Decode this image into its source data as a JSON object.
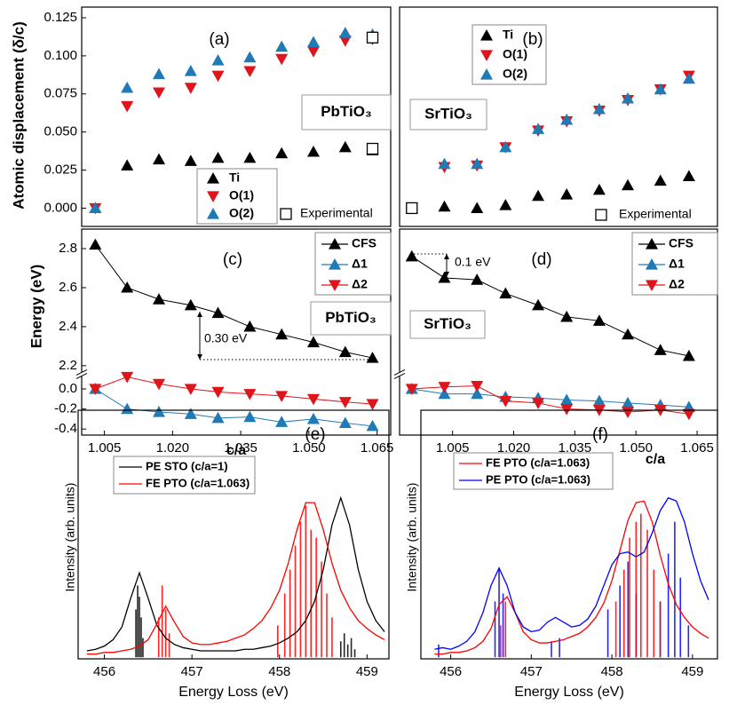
{
  "chart_data": [
    {
      "type": "scatter",
      "label": "(a)",
      "annotation": "PbTiO₃",
      "ylabel": "Atomic displacement (δ/c)",
      "x": [
        1.003,
        1.01,
        1.017,
        1.024,
        1.03,
        1.037,
        1.044,
        1.051,
        1.058,
        1.064
      ],
      "xlim": [
        1.0,
        1.068
      ],
      "ylim": [
        -0.012,
        0.132
      ],
      "yticks": [
        {
          "value": 0,
          "label": "0.000"
        },
        {
          "value": 0.025,
          "label": "0.025"
        },
        {
          "value": 0.05,
          "label": "0.050"
        },
        {
          "value": 0.075,
          "label": "0.075"
        },
        {
          "value": 0.1,
          "label": "0.100"
        },
        {
          "value": 0.125,
          "label": "0.125"
        }
      ],
      "series": [
        {
          "name": "Ti",
          "color": "#000000",
          "marker": "triangle-up",
          "values": [
            0,
            0.028,
            0.032,
            0.031,
            0.033,
            0.033,
            0.036,
            0.037,
            0.04,
            0.038
          ]
        },
        {
          "name": "O(1)",
          "color": "#e0141b",
          "marker": "triangle-down",
          "values": [
            0,
            0.067,
            0.076,
            0.079,
            0.087,
            0.09,
            0.098,
            0.103,
            0.11,
            0.111
          ]
        },
        {
          "name": "O(2)",
          "color": "#1f7ab5",
          "marker": "triangle-up",
          "values": [
            0,
            0.079,
            0.088,
            0.09,
            0.097,
            0.099,
            0.106,
            0.109,
            0.115,
            0.114
          ]
        },
        {
          "name": "Experimental",
          "color": "#000000",
          "marker": "square-open",
          "x": [
            1.064,
            1.064
          ],
          "values": [
            0.112,
            0.039
          ]
        }
      ]
    },
    {
      "type": "scatter",
      "label": "(b)",
      "annotation": "SrTiO₃",
      "x": [
        0.995,
        1.003,
        1.011,
        1.018,
        1.026,
        1.033,
        1.041,
        1.048,
        1.056,
        1.063
      ],
      "xlim": [
        0.992,
        1.07
      ],
      "ylim": [
        -0.012,
        0.132
      ],
      "series": [
        {
          "name": "Ti",
          "color": "#000000",
          "marker": "triangle-up",
          "values": [
            0,
            0.001,
            0.0,
            0.002,
            0.008,
            0.009,
            0.012,
            0.015,
            0.018,
            0.021
          ]
        },
        {
          "name": "O(1)",
          "color": "#e0141b",
          "marker": "triangle-down",
          "values": [
            0,
            0.027,
            0.028,
            0.04,
            0.051,
            0.057,
            0.064,
            0.071,
            0.078,
            0.087
          ]
        },
        {
          "name": "O(2)",
          "color": "#1f7ab5",
          "marker": "triangle-up",
          "values": [
            0,
            0.029,
            0.029,
            0.04,
            0.052,
            0.058,
            0.065,
            0.072,
            0.078,
            0.085
          ]
        },
        {
          "name": "Experimental",
          "color": "#000000",
          "marker": "square-open",
          "x": [
            0.995
          ],
          "values": [
            0
          ]
        }
      ]
    },
    {
      "type": "line",
      "label": "(c)",
      "annotation": "PbTiO₃",
      "ylabel": "Energy (eV)",
      "xlabel": "c/a",
      "note": "0.30 eV",
      "x": [
        1.003,
        1.01,
        1.017,
        1.024,
        1.03,
        1.037,
        1.044,
        1.051,
        1.058,
        1.064
      ],
      "xlim": [
        1.0,
        1.068
      ],
      "ylim": [
        -0.46,
        2.9
      ],
      "ybreak": [
        0.12,
        2.17
      ],
      "yticks": [
        -0.4,
        -0.2,
        {
          "value": 0,
          "label": "0.0"
        },
        2.2,
        2.4,
        2.6,
        2.8
      ],
      "xticks": [
        1.005,
        {
          "value": 1.02,
          "label": "1.020"
        },
        1.035,
        {
          "value": 1.05,
          "label": "1.050"
        },
        1.065
      ],
      "series": [
        {
          "name": "CFS",
          "color": "#000000",
          "marker": "triangle-up",
          "values": [
            2.82,
            2.6,
            2.54,
            2.51,
            2.47,
            2.4,
            2.36,
            2.32,
            2.27,
            2.24
          ]
        },
        {
          "name": "Δ1",
          "color": "#1f7ab5",
          "marker": "triangle-up",
          "values": [
            0,
            -0.2,
            -0.23,
            -0.25,
            -0.29,
            -0.28,
            -0.33,
            -0.3,
            -0.34,
            -0.37
          ]
        },
        {
          "name": "Δ2",
          "color": "#e0141b",
          "marker": "triangle-down",
          "values": [
            0,
            0.12,
            0.05,
            0.0,
            -0.03,
            -0.05,
            -0.07,
            -0.1,
            -0.13,
            -0.15
          ]
        }
      ]
    },
    {
      "type": "line",
      "label": "(d)",
      "annotation": "SrTiO₃",
      "xlabel": "c/a",
      "note": "0.1 eV",
      "x": [
        0.995,
        1.003,
        1.011,
        1.018,
        1.026,
        1.033,
        1.041,
        1.048,
        1.056,
        1.063
      ],
      "xlim": [
        0.992,
        1.07
      ],
      "ylim": [
        -0.46,
        2.9
      ],
      "ybreak": [
        0.12,
        2.17
      ],
      "xticks": [
        1.005,
        {
          "value": 1.02,
          "label": "1.020"
        },
        1.035,
        {
          "value": 1.05,
          "label": "1.050"
        },
        1.065
      ],
      "series": [
        {
          "name": "CFS",
          "color": "#000000",
          "marker": "triangle-up",
          "values": [
            2.76,
            2.65,
            2.64,
            2.57,
            2.51,
            2.45,
            2.43,
            2.36,
            2.28,
            2.25
          ]
        },
        {
          "name": "Δ1",
          "color": "#1f7ab5",
          "marker": "triangle-up",
          "values": [
            0,
            -0.05,
            -0.05,
            -0.08,
            -0.09,
            -0.11,
            -0.12,
            -0.14,
            -0.16,
            -0.18
          ]
        },
        {
          "name": "Δ2",
          "color": "#e0141b",
          "marker": "triangle-down",
          "values": [
            0,
            0.02,
            0.03,
            -0.12,
            -0.14,
            -0.2,
            -0.21,
            -0.23,
            -0.21,
            -0.25
          ]
        }
      ]
    },
    {
      "type": "line",
      "label": "(e)",
      "ylabel": "Intensity (arb. units)",
      "xlabel": "Energy Loss (eV)",
      "x": [
        455.8,
        455.9,
        456.0,
        456.1,
        456.2,
        456.3,
        456.4,
        456.5,
        456.6,
        456.7,
        456.8,
        456.9,
        457.0,
        457.1,
        457.2,
        457.3,
        457.4,
        457.5,
        457.6,
        457.7,
        457.8,
        457.9,
        458.0,
        458.1,
        458.2,
        458.3,
        458.4,
        458.5,
        458.6,
        458.7,
        458.8,
        458.9,
        459.0,
        459.1,
        459.2
      ],
      "xlim": [
        455.7,
        459.25
      ],
      "ylim": [
        -0.01,
        1.55
      ],
      "xticks": [
        456,
        457,
        458,
        459
      ],
      "series": [
        {
          "type": "stick",
          "color": "#000000",
          "x": [
            456.36,
            456.38,
            456.4,
            456.42,
            456.44,
            458.7,
            458.74,
            458.78,
            458.82,
            458.86
          ],
          "values": [
            0.3,
            0.45,
            0.38,
            0.25,
            0.12,
            0.1,
            0.15,
            0.08,
            0.12,
            0.05
          ]
        },
        {
          "type": "stick",
          "color": "#ff0000",
          "x": [
            456.62,
            456.66,
            456.7,
            456.74,
            457.98,
            458.06,
            458.12,
            458.18,
            458.24,
            458.3,
            458.36,
            458.42,
            458.48,
            458.54,
            458.6
          ],
          "values": [
            0.25,
            0.45,
            0.3,
            0.15,
            0.2,
            0.4,
            0.55,
            0.7,
            0.85,
            0.95,
            0.8,
            0.75,
            0.6,
            0.4,
            0.25
          ]
        },
        {
          "name": "PE STO (c/a=1)",
          "color": "#000000",
          "values": [
            0.04,
            0.05,
            0.07,
            0.11,
            0.19,
            0.37,
            0.53,
            0.37,
            0.2,
            0.12,
            0.08,
            0.06,
            0.05,
            0.04,
            0.04,
            0.04,
            0.04,
            0.04,
            0.05,
            0.05,
            0.06,
            0.07,
            0.09,
            0.12,
            0.16,
            0.23,
            0.35,
            0.55,
            0.83,
            1.0,
            0.83,
            0.55,
            0.35,
            0.23,
            0.16
          ]
        },
        {
          "name": "FE PTO (c/a=1.063)",
          "color": "#ff0000",
          "values": [
            0.02,
            0.02,
            0.03,
            0.03,
            0.04,
            0.05,
            0.07,
            0.11,
            0.21,
            0.32,
            0.22,
            0.13,
            0.09,
            0.08,
            0.08,
            0.09,
            0.1,
            0.12,
            0.14,
            0.18,
            0.23,
            0.31,
            0.42,
            0.59,
            0.8,
            0.97,
            0.97,
            0.8,
            0.59,
            0.42,
            0.31,
            0.23,
            0.18,
            0.14,
            0.11
          ]
        }
      ]
    },
    {
      "type": "line",
      "label": "(f)",
      "ylabel": "Intensity (arb. units)",
      "xlabel": "Energy Loss (eV)",
      "x": [
        455.8,
        455.9,
        456.0,
        456.1,
        456.2,
        456.3,
        456.4,
        456.5,
        456.6,
        456.7,
        456.8,
        456.9,
        457.0,
        457.1,
        457.2,
        457.3,
        457.4,
        457.5,
        457.6,
        457.7,
        457.8,
        457.9,
        458.0,
        458.1,
        458.2,
        458.3,
        458.4,
        458.5,
        458.6,
        458.7,
        458.8,
        458.9,
        459.0,
        459.1,
        459.2
      ],
      "xlim": [
        455.63,
        459.31
      ],
      "ylim": [
        -0.01,
        1.55
      ],
      "xticks": [
        456,
        457,
        458,
        459
      ],
      "series": [
        {
          "type": "stick",
          "color": "#0000ff",
          "x": [
            455.85,
            456.55,
            456.6,
            456.65,
            457.25,
            457.35,
            457.95,
            458.1,
            458.2,
            458.3,
            458.6,
            458.7,
            458.78,
            458.85,
            458.95
          ],
          "values": [
            0.08,
            0.35,
            0.55,
            0.4,
            0.1,
            0.12,
            0.3,
            0.45,
            0.6,
            0.4,
            0.35,
            0.65,
            0.85,
            0.5,
            0.2
          ]
        },
        {
          "type": "stick",
          "color": "#ff0000",
          "x": [
            456.62,
            456.68,
            458.05,
            458.15,
            458.22,
            458.3,
            458.36,
            458.44,
            458.52,
            458.6
          ],
          "values": [
            0.2,
            0.35,
            0.35,
            0.55,
            0.75,
            0.85,
            0.9,
            0.8,
            0.55,
            0.35
          ]
        },
        {
          "name": "FE PTO (c/a=1.063)",
          "color": "#ff0000",
          "values": [
            0.02,
            0.02,
            0.03,
            0.03,
            0.04,
            0.06,
            0.1,
            0.18,
            0.33,
            0.38,
            0.28,
            0.16,
            0.11,
            0.09,
            0.09,
            0.1,
            0.11,
            0.13,
            0.15,
            0.19,
            0.25,
            0.34,
            0.48,
            0.67,
            0.86,
            0.97,
            0.98,
            0.85,
            0.64,
            0.46,
            0.33,
            0.25,
            0.19,
            0.15,
            0.12
          ]
        },
        {
          "name": "PE PTO (c/a=1.063)",
          "color": "#0000ff",
          "values": [
            0.05,
            0.06,
            0.05,
            0.07,
            0.1,
            0.16,
            0.28,
            0.45,
            0.56,
            0.45,
            0.28,
            0.19,
            0.16,
            0.17,
            0.22,
            0.25,
            0.22,
            0.19,
            0.2,
            0.24,
            0.32,
            0.45,
            0.58,
            0.65,
            0.66,
            0.63,
            0.66,
            0.78,
            0.92,
            1.0,
            0.98,
            0.85,
            0.65,
            0.48,
            0.36
          ]
        }
      ]
    }
  ]
}
